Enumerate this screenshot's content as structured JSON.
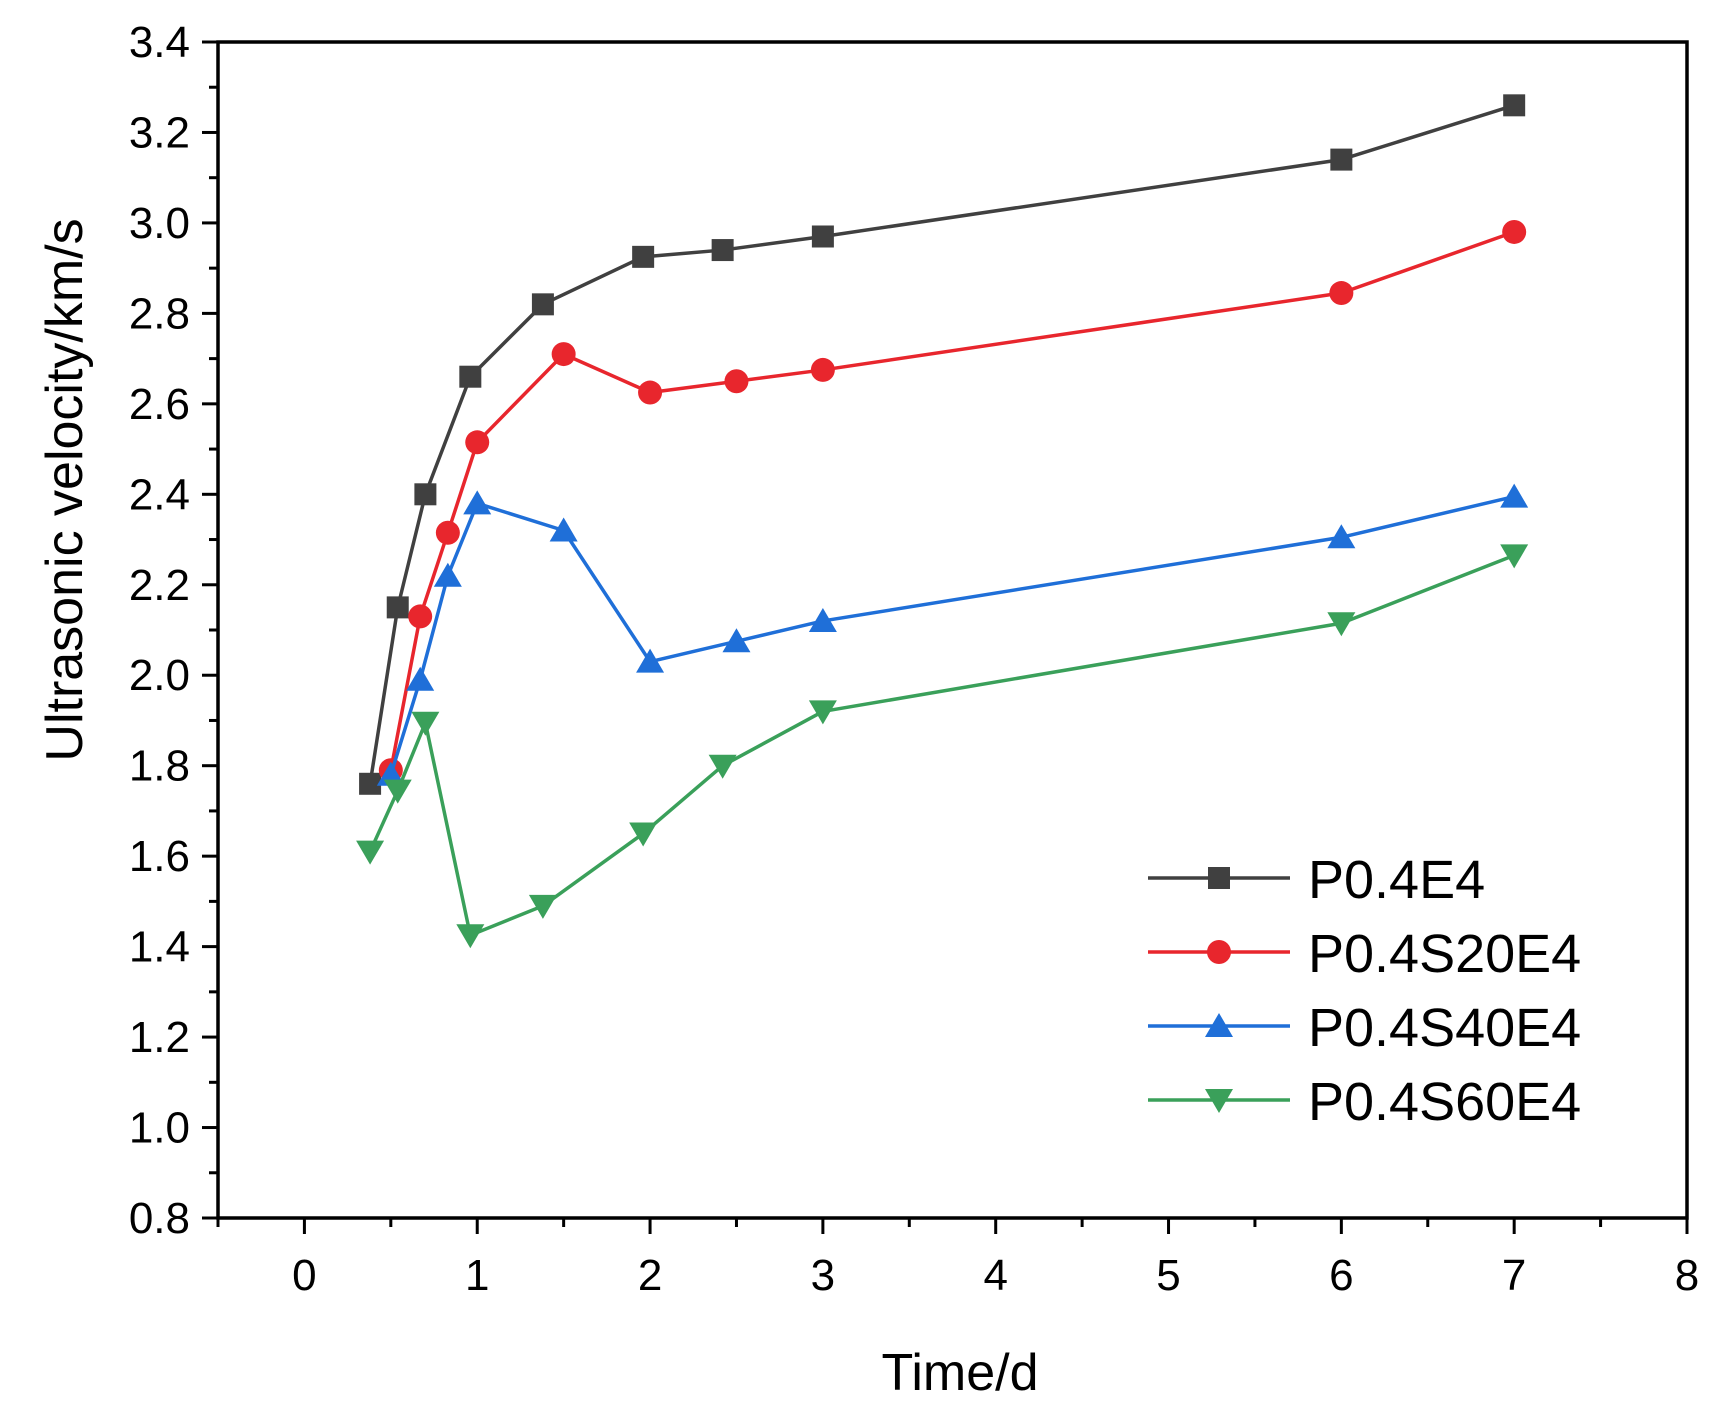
{
  "chart_data": {
    "type": "line",
    "title": "",
    "xlabel": "Time/d",
    "ylabel": "Ultrasonic velocity/km/s",
    "xlim": [
      -0.5,
      8
    ],
    "ylim": [
      0.8,
      3.4
    ],
    "xticks": [
      0,
      1,
      2,
      3,
      4,
      5,
      6,
      7,
      8
    ],
    "yticks": [
      0.8,
      1.0,
      1.2,
      1.4,
      1.6,
      1.8,
      2.0,
      2.2,
      2.4,
      2.6,
      2.8,
      3.0,
      3.2,
      3.4
    ],
    "xtick_labels": [
      "0",
      "1",
      "2",
      "3",
      "4",
      "5",
      "6",
      "7",
      "8"
    ],
    "ytick_labels": [
      "0.8",
      "1.0",
      "1.2",
      "1.4",
      "1.6",
      "1.8",
      "2.0",
      "2.2",
      "2.4",
      "2.6",
      "2.8",
      "3.0",
      "3.2",
      "3.4"
    ],
    "grid": false,
    "legend_position": "bottom-right",
    "series": [
      {
        "name": "P0.4E4",
        "color": "#404040",
        "marker": "square",
        "x": [
          0.38,
          0.54,
          0.7,
          0.96,
          1.38,
          1.96,
          2.42,
          3.0,
          6.0,
          7.0
        ],
        "y": [
          1.76,
          2.15,
          2.4,
          2.66,
          2.82,
          2.925,
          2.94,
          2.97,
          3.14,
          3.26
        ]
      },
      {
        "name": "P0.4S20E4",
        "color": "#e8262d",
        "marker": "circle",
        "x": [
          0.5,
          0.67,
          0.83,
          1.0,
          1.5,
          2.0,
          2.5,
          3.0,
          6.0,
          7.0
        ],
        "y": [
          1.79,
          2.13,
          2.315,
          2.515,
          2.71,
          2.625,
          2.65,
          2.675,
          2.845,
          2.98
        ]
      },
      {
        "name": "P0.4S40E4",
        "color": "#1f6fd8",
        "marker": "triangle-up",
        "x": [
          0.5,
          0.67,
          0.83,
          1.0,
          1.5,
          2.0,
          2.5,
          3.0,
          6.0,
          7.0
        ],
        "y": [
          1.78,
          1.99,
          2.22,
          2.38,
          2.32,
          2.03,
          2.075,
          2.12,
          2.305,
          2.395
        ]
      },
      {
        "name": "P0.4S60E4",
        "color": "#3aa05a",
        "marker": "triangle-down",
        "x": [
          0.38,
          0.54,
          0.7,
          0.96,
          1.38,
          1.96,
          2.42,
          3.0,
          6.0,
          7.0
        ],
        "y": [
          1.61,
          1.745,
          1.895,
          1.425,
          1.49,
          1.65,
          1.8,
          1.92,
          2.115,
          2.265
        ]
      }
    ]
  }
}
